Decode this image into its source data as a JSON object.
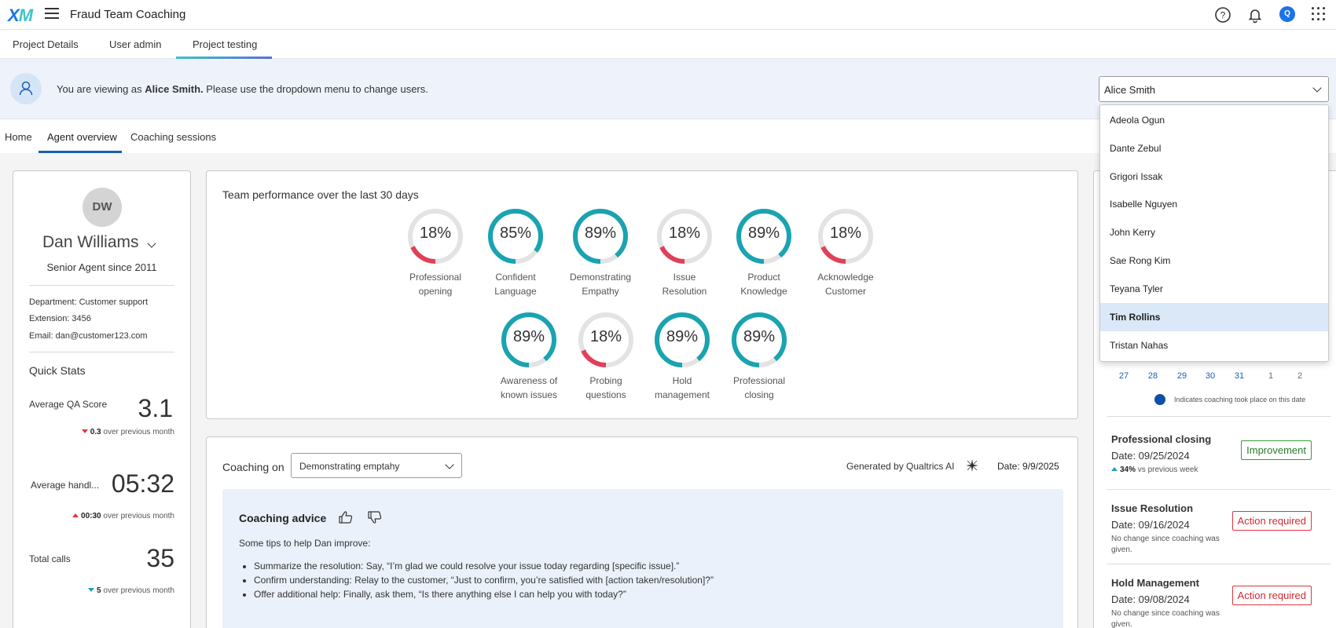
{
  "header": {
    "logo": "XM",
    "title": "Fraud Team Coaching",
    "avatar_initial": "Q"
  },
  "project_tabs": [
    "Project Details",
    "User admin",
    "Project testing"
  ],
  "banner": {
    "prefix": "You are viewing as ",
    "user": "Alice Smith.",
    "suffix": " Please use the dropdown menu to change users.",
    "selected_user": "Alice Smith"
  },
  "sub_tabs": [
    "Home",
    "Agent overview",
    "Coaching sessions"
  ],
  "agent": {
    "initials": "DW",
    "name": "Dan Williams",
    "role": "Senior Agent since 2011",
    "department": "Department:  Customer support",
    "extension": "Extension: 3456",
    "email": "Email: dan@customer123.com"
  },
  "quick_stats": {
    "title": "Quick Stats",
    "items": [
      {
        "label": "Average QA Score",
        "value": "3.1",
        "delta": "0.3",
        "delta_text": "over previous month"
      },
      {
        "label": "Average handl...",
        "value": "05:32",
        "delta": "00:30",
        "delta_text": "over previous month"
      },
      {
        "label": "Total calls",
        "value": "35",
        "delta": "5",
        "delta_text": "over previous month"
      }
    ]
  },
  "team_performance": {
    "title": "Team performance over the last 30 days",
    "row1": [
      {
        "pct": "18%",
        "value": 0.18,
        "label1": "Professional",
        "label2": "opening",
        "color": "#e0405a"
      },
      {
        "pct": "85%",
        "value": 0.85,
        "label1": "Confident",
        "label2": "Language",
        "color": "#1aa3b0"
      },
      {
        "pct": "89%",
        "value": 0.89,
        "label1": "Demonstrating",
        "label2": "Empathy",
        "color": "#1aa3b0"
      },
      {
        "pct": "18%",
        "value": 0.18,
        "label1": "Issue",
        "label2": "Resolution",
        "color": "#e0405a"
      },
      {
        "pct": "89%",
        "value": 0.89,
        "label1": "Product",
        "label2": "Knowledge",
        "color": "#1aa3b0"
      },
      {
        "pct": "18%",
        "value": 0.18,
        "label1": "Acknowledge",
        "label2": "Customer",
        "color": "#e0405a"
      }
    ],
    "row2": [
      {
        "pct": "89%",
        "value": 0.89,
        "label1": "Awareness of",
        "label2": "known issues",
        "color": "#1aa3b0"
      },
      {
        "pct": "18%",
        "value": 0.18,
        "label1": "Probing",
        "label2": "questions",
        "color": "#e0405a"
      },
      {
        "pct": "89%",
        "value": 0.89,
        "label1": "Hold",
        "label2": "management",
        "color": "#1aa3b0"
      },
      {
        "pct": "89%",
        "value": 0.89,
        "label1": "Professional",
        "label2": "closing",
        "color": "#1aa3b0"
      }
    ]
  },
  "coaching": {
    "label": "Coaching on",
    "selected": "Demonstrating emptahy",
    "generated_by": "Generated by Qualtrics AI",
    "date": "Date: 9/9/2025",
    "advice_title": "Coaching advice",
    "intro": "Some tips to help Dan improve:",
    "tips": [
      "Summarize the resolution: Say, “I’m glad we could resolve your issue today regarding [specific issue].”",
      "Confirm understanding: Relay to the customer, “Just to confirm, you’re satisfied with [action taken/resolution]?”",
      "Offer additional help: Finally, ask them, “Is there anything else I can help you with today?”"
    ]
  },
  "calendar": {
    "days": [
      "27",
      "28",
      "29",
      "30",
      "31",
      "1",
      "2"
    ],
    "legend": "Indicates coaching took place on this date"
  },
  "sessions": [
    {
      "title": "Professional closing",
      "date": "Date: 09/25/2024",
      "delta": "34%",
      "note": "vs previous week",
      "badge": "Improvement"
    },
    {
      "title": "Issue Resolution",
      "date": "Date: 09/16/2024",
      "note": "No change since coaching was given.",
      "badge": "Action required"
    },
    {
      "title": "Hold Management",
      "date": "Date: 09/08/2024",
      "note": "No change since coaching was given.",
      "badge": "Action required"
    }
  ],
  "user_dropdown": [
    "Adeola Ogun",
    "Dante Zebul",
    "Grigori Issak",
    "Isabelle Nguyen",
    "John Kerry",
    "Sae Rong Kim",
    "Teyana Tyler",
    "Tim Rollins",
    "Tristan Nahas"
  ],
  "colors": {
    "accent": "#1a5fb4",
    "teal": "#1aa3b0",
    "red": "#e0405a",
    "banner": "#eef3fb"
  }
}
